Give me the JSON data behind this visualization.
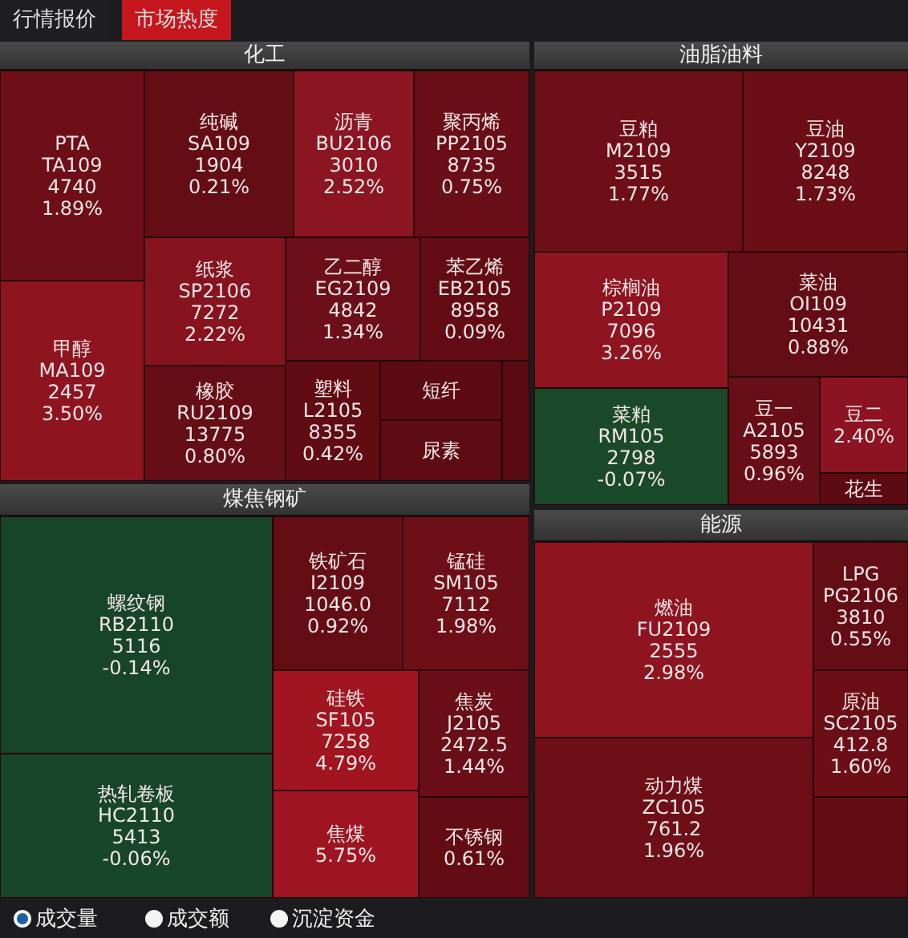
{
  "chart_data": [
    {
      "type": "other",
      "title": "化工",
      "categories": [
        "PTA",
        "甲醇",
        "纯碱",
        "沥青",
        "聚丙烯",
        "纸浆",
        "乙二醇",
        "苯乙烯",
        "橡胶",
        "塑料",
        "短纤",
        "尿素",
        null
      ],
      "series": [
        {
          "values": [
            1.89,
            3.5,
            0.21,
            2.52,
            0.75,
            2.22,
            1.34,
            0.09,
            0.8,
            0.42,
            null,
            null,
            null
          ],
          "value_labels": [
            "1.89%",
            "3.50%",
            "0.21%",
            "2.52%",
            "0.75%",
            "2.22%",
            "1.34%",
            "0.09%",
            "0.80%",
            "0.42%",
            null,
            null,
            null
          ],
          "colors": [
            "#6e0f17",
            "#8e1420",
            "#650d15",
            "#8b1521",
            "#6a0e17",
            "#87131f",
            "#6c0f18",
            "#630c14",
            "#660e16",
            "#610b13",
            "#5c0b13",
            "#5d0c14",
            "#5a0a12"
          ]
        }
      ],
      "annotations": [
        {
          "text": "TA109",
          "x": "PTA"
        },
        {
          "text": "4740",
          "x": "PTA"
        },
        {
          "text": "MA109",
          "x": "甲醇"
        },
        {
          "text": "2457",
          "x": "甲醇"
        },
        {
          "text": "SA109",
          "x": "纯碱"
        },
        {
          "text": "1904",
          "x": "纯碱"
        },
        {
          "text": "BU2106",
          "x": "沥青"
        },
        {
          "text": "3010",
          "x": "沥青"
        },
        {
          "text": "PP2105",
          "x": "聚丙烯"
        },
        {
          "text": "8735",
          "x": "聚丙烯"
        },
        {
          "text": "SP2106",
          "x": "纸浆"
        },
        {
          "text": "7272",
          "x": "纸浆"
        },
        {
          "text": "EG2109",
          "x": "乙二醇"
        },
        {
          "text": "4842",
          "x": "乙二醇"
        },
        {
          "text": "EB2105",
          "x": "苯乙烯"
        },
        {
          "text": "8958",
          "x": "苯乙烯"
        },
        {
          "text": "RU2109",
          "x": "橡胶"
        },
        {
          "text": "13775",
          "x": "橡胶"
        },
        {
          "text": "L2105",
          "x": "塑料"
        },
        {
          "text": "8355",
          "x": "塑料"
        }
      ]
    },
    {
      "type": "other",
      "title": "油脂油料",
      "categories": [
        "豆粕",
        "豆油",
        "棕榈油",
        "菜油",
        "菜粕",
        "豆一",
        "豆二",
        "花生"
      ],
      "series": [
        {
          "values": [
            1.77,
            1.73,
            3.26,
            0.88,
            -0.07,
            0.96,
            2.4,
            null
          ],
          "value_labels": [
            "1.77%",
            "1.73%",
            "3.26%",
            "0.88%",
            "-0.07%",
            "0.96%",
            "2.40%",
            null
          ],
          "colors": [
            "#6e0f17",
            "#6c0e16",
            "#8e1420",
            "#650d15",
            "#1b4a2a",
            "#670e16",
            "#8c1321",
            "#5c0b13"
          ]
        }
      ],
      "annotations": [
        {
          "text": "M2109",
          "x": "豆粕"
        },
        {
          "text": "3515",
          "x": "豆粕"
        },
        {
          "text": "Y2109",
          "x": "豆油"
        },
        {
          "text": "8248",
          "x": "豆油"
        },
        {
          "text": "P2109",
          "x": "棕榈油"
        },
        {
          "text": "7096",
          "x": "棕榈油"
        },
        {
          "text": "OI109",
          "x": "菜油"
        },
        {
          "text": "10431",
          "x": "菜油"
        },
        {
          "text": "RM105",
          "x": "菜粕"
        },
        {
          "text": "2798",
          "x": "菜粕"
        },
        {
          "text": "A2105",
          "x": "豆一"
        },
        {
          "text": "5893",
          "x": "豆一"
        }
      ]
    },
    {
      "type": "other",
      "title": "煤焦钢矿",
      "categories": [
        "螺纹钢",
        "热轧卷板",
        "铁矿石",
        "锰硅",
        "硅铁",
        "焦炭",
        "焦煤",
        "不锈钢"
      ],
      "series": [
        {
          "values": [
            -0.14,
            -0.06,
            0.92,
            1.98,
            4.79,
            1.44,
            5.75,
            0.61
          ],
          "value_labels": [
            "-0.14%",
            "-0.06%",
            "0.92%",
            "1.98%",
            "4.79%",
            "1.44%",
            "5.75%",
            "0.61%"
          ],
          "colors": [
            "#17452a",
            "#18462b",
            "#650d15",
            "#6e0f17",
            "#a0151f",
            "#6a0e17",
            "#9e1420",
            "#640c14"
          ]
        }
      ],
      "annotations": [
        {
          "text": "RB2110",
          "x": "螺纹钢"
        },
        {
          "text": "5116",
          "x": "螺纹钢"
        },
        {
          "text": "HC2110",
          "x": "热轧卷板"
        },
        {
          "text": "5413",
          "x": "热轧卷板"
        },
        {
          "text": "I2109",
          "x": "铁矿石"
        },
        {
          "text": "1046.0",
          "x": "铁矿石"
        },
        {
          "text": "SM105",
          "x": "锰硅"
        },
        {
          "text": "7112",
          "x": "锰硅"
        },
        {
          "text": "SF105",
          "x": "硅铁"
        },
        {
          "text": "7258",
          "x": "硅铁"
        },
        {
          "text": "J2105",
          "x": "焦炭"
        },
        {
          "text": "2472.5",
          "x": "焦炭"
        }
      ]
    },
    {
      "type": "other",
      "title": "能源",
      "categories": [
        "燃油",
        "动力煤",
        "LPG",
        "原油",
        null
      ],
      "series": [
        {
          "values": [
            2.98,
            1.96,
            0.55,
            1.6,
            null
          ],
          "value_labels": [
            "2.98%",
            "1.96%",
            "0.55%",
            "1.60%",
            null
          ],
          "colors": [
            "#8e1420",
            "#6e0f17",
            "#650d15",
            "#6c0e16",
            "#630c14"
          ]
        }
      ],
      "annotations": [
        {
          "text": "FU2109",
          "x": "燃油"
        },
        {
          "text": "2555",
          "x": "燃油"
        },
        {
          "text": "ZC105",
          "x": "动力煤"
        },
        {
          "text": "761.2",
          "x": "动力煤"
        },
        {
          "text": "PG2106",
          "x": "LPG"
        },
        {
          "text": "3810",
          "x": "LPG"
        },
        {
          "text": "SC2105",
          "x": "原油"
        },
        {
          "text": "412.8",
          "x": "原油"
        }
      ]
    },
    {
      "type": "other",
      "annotations": [
        "行情报价",
        "市场热度",
        "成交量",
        "成交额",
        "沉淀资金"
      ]
    }
  ]
}
